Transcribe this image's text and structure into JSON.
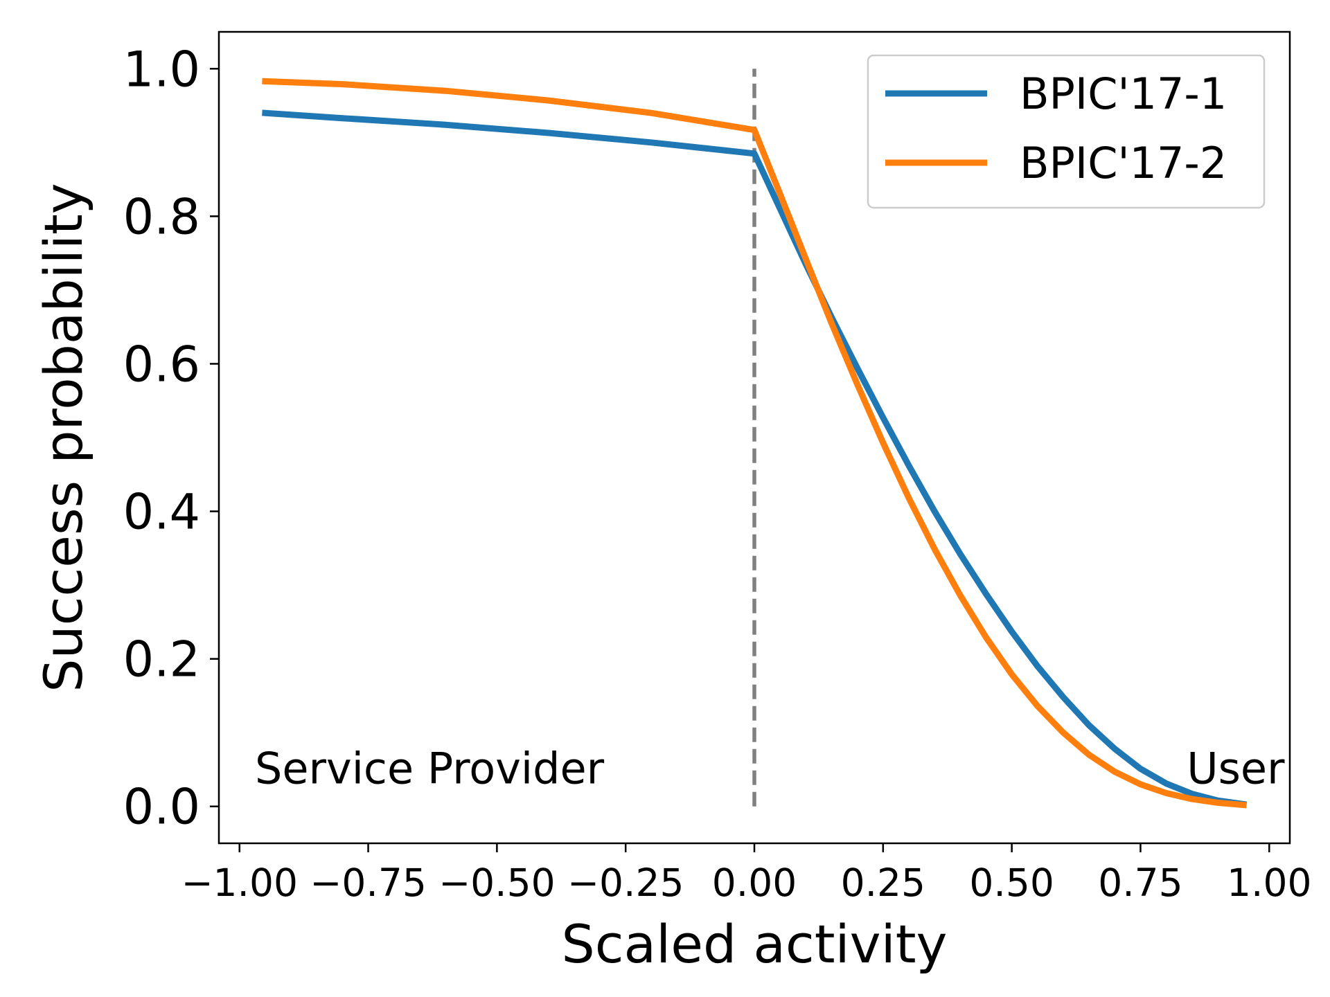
{
  "chart_data": {
    "type": "line",
    "xlabel": "Scaled activity",
    "ylabel": "Success probability",
    "xlim": [
      -1.04,
      1.04
    ],
    "ylim": [
      -0.05,
      1.05
    ],
    "xticks": [
      -1.0,
      -0.75,
      -0.5,
      -0.25,
      0.0,
      0.25,
      0.5,
      0.75,
      1.0
    ],
    "xtick_labels": [
      "−1.00",
      "−0.75",
      "−0.50",
      "−0.25",
      "0.00",
      "0.25",
      "0.50",
      "0.75",
      "1.00"
    ],
    "yticks": [
      0.0,
      0.2,
      0.4,
      0.6,
      0.8,
      1.0
    ],
    "ytick_labels": [
      "0.0",
      "0.2",
      "0.4",
      "0.6",
      "0.8",
      "1.0"
    ],
    "grid": false,
    "legend_position": "top-right",
    "series": [
      {
        "name": "BPIC'17-1",
        "color": "#1f77b4",
        "x": [
          -0.95,
          -0.8,
          -0.6,
          -0.4,
          -0.2,
          0.0,
          0.05,
          0.1,
          0.15,
          0.2,
          0.25,
          0.3,
          0.35,
          0.4,
          0.45,
          0.5,
          0.55,
          0.6,
          0.65,
          0.7,
          0.75,
          0.8,
          0.85,
          0.9,
          0.95
        ],
        "y": [
          0.94,
          0.933,
          0.924,
          0.913,
          0.9,
          0.885,
          0.81,
          0.735,
          0.663,
          0.594,
          0.527,
          0.462,
          0.4,
          0.342,
          0.288,
          0.237,
          0.19,
          0.148,
          0.11,
          0.078,
          0.051,
          0.031,
          0.017,
          0.008,
          0.003
        ]
      },
      {
        "name": "BPIC'17-2",
        "color": "#ff7f0e",
        "x": [
          -0.95,
          -0.8,
          -0.6,
          -0.4,
          -0.2,
          0.0,
          0.05,
          0.1,
          0.15,
          0.2,
          0.25,
          0.3,
          0.35,
          0.4,
          0.45,
          0.5,
          0.55,
          0.6,
          0.65,
          0.7,
          0.75,
          0.8,
          0.85,
          0.9,
          0.95
        ],
        "y": [
          0.983,
          0.979,
          0.97,
          0.957,
          0.94,
          0.917,
          0.83,
          0.742,
          0.655,
          0.572,
          0.493,
          0.418,
          0.349,
          0.286,
          0.229,
          0.179,
          0.136,
          0.1,
          0.07,
          0.047,
          0.03,
          0.018,
          0.01,
          0.005,
          0.002
        ]
      }
    ],
    "vline": {
      "x": 0.0,
      "y_range": [
        0.0,
        1.0
      ],
      "color": "#808080",
      "style": "dashed"
    },
    "annotations": [
      {
        "text": "Service Provider",
        "x": -0.97,
        "y": 0.05
      },
      {
        "text": "User",
        "x": 1.03,
        "y": 0.05
      }
    ]
  }
}
